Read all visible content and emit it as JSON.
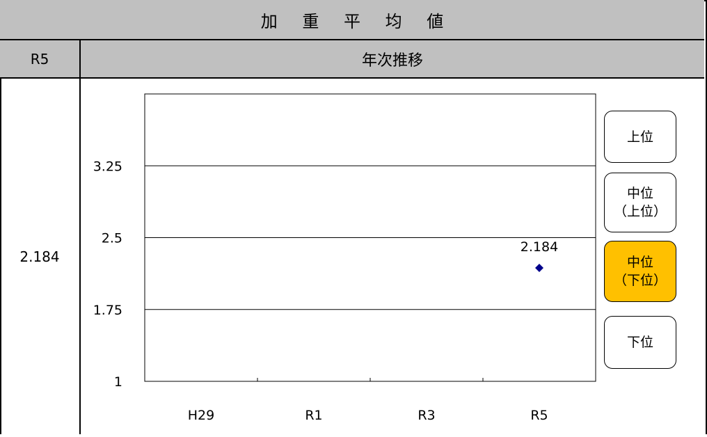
{
  "header": {
    "title": "加 重 平 均 値"
  },
  "subheader": {
    "year_label": "R5",
    "trend_label": "年次推移"
  },
  "current_value": "2.184",
  "rank_buttons": [
    {
      "line1": "上位",
      "line2": "",
      "active": false
    },
    {
      "line1": "中位",
      "line2": "（上位）",
      "active": false
    },
    {
      "line1": "中位",
      "line2": "（下位）",
      "active": true
    },
    {
      "line1": "下位",
      "line2": "",
      "active": false
    }
  ],
  "colors": {
    "header_bg": "#c0c0c0",
    "active_button": "#ffc000",
    "marker": "#00008b"
  },
  "chart_data": {
    "type": "scatter",
    "categories": [
      "H29",
      "R1",
      "R3",
      "R5"
    ],
    "y_ticks": [
      "3.25",
      "2.5",
      "1.75",
      "1"
    ],
    "ylim": [
      1,
      4
    ],
    "gridlines": [
      1.75,
      2.5,
      3.25
    ],
    "series": [
      {
        "points": [
          {
            "x": "R5",
            "y": 2.184,
            "label": "2.184"
          }
        ]
      }
    ]
  }
}
